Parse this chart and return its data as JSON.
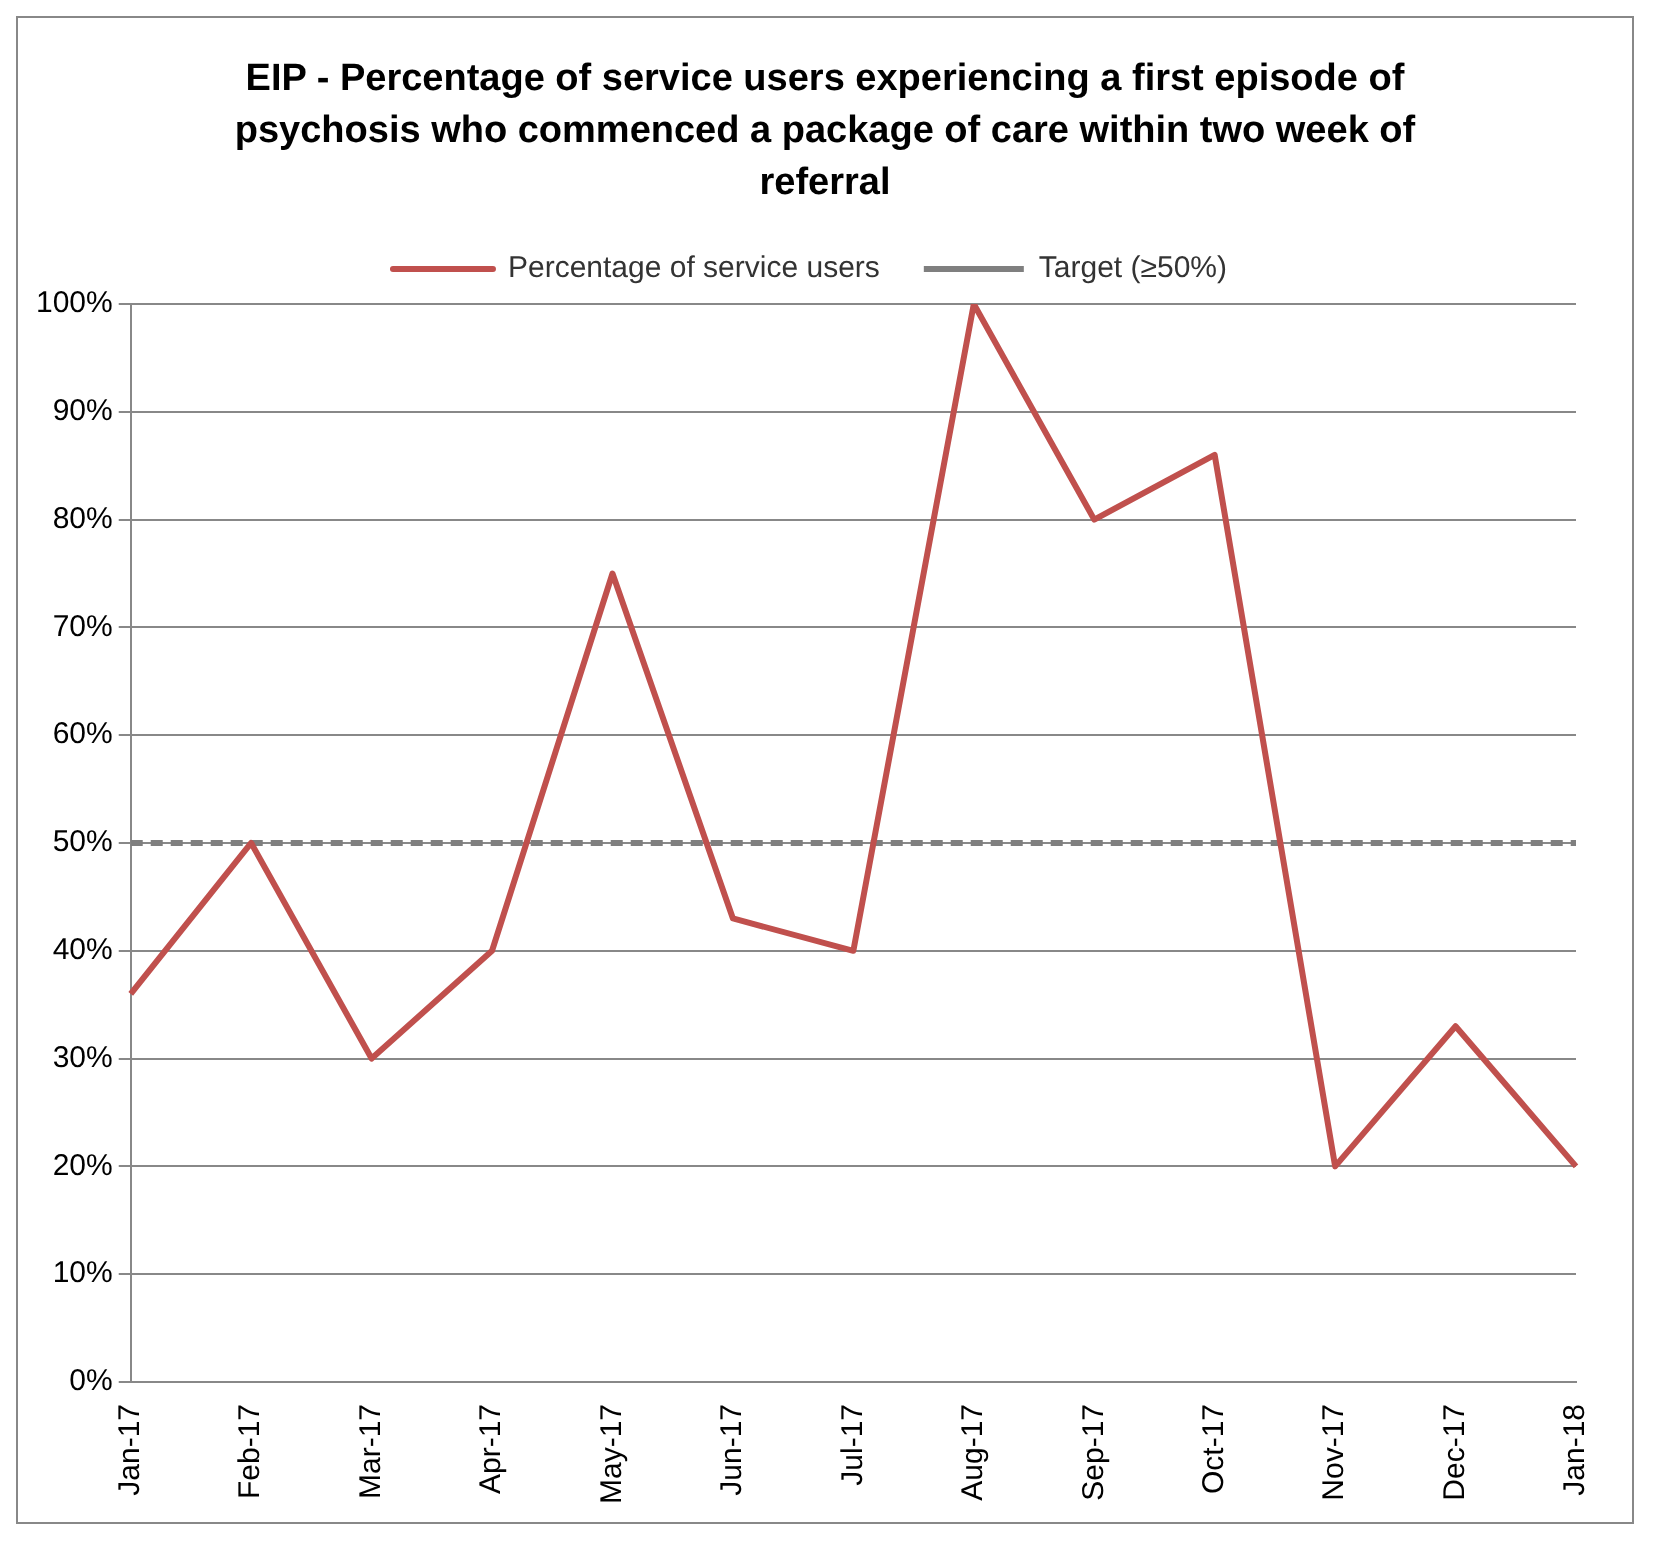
{
  "chart_data": {
    "type": "line",
    "title": "EIP - Percentage of service users experiencing a first episode of psychosis who commenced a package of care within two week of referral",
    "categories": [
      "Jan-17",
      "Feb-17",
      "Mar-17",
      "Apr-17",
      "May-17",
      "Jun-17",
      "Jul-17",
      "Aug-17",
      "Sep-17",
      "Oct-17",
      "Nov-17",
      "Dec-17",
      "Jan-18"
    ],
    "series": [
      {
        "name": "Percentage of service users",
        "color": "#c0504d",
        "values": [
          36,
          50,
          30,
          40,
          75,
          43,
          40,
          100,
          80,
          86,
          20,
          33,
          20
        ]
      },
      {
        "name": "Target (≥50%)",
        "color": "#7f7f7f",
        "line_style": "dashed",
        "values": [
          50,
          50,
          50,
          50,
          50,
          50,
          50,
          50,
          50,
          50,
          50,
          50,
          50
        ]
      }
    ],
    "ylim": [
      0,
      100
    ],
    "yticks": [
      {
        "value": 0,
        "label": "0%"
      },
      {
        "value": 10,
        "label": "10%"
      },
      {
        "value": 20,
        "label": "20%"
      },
      {
        "value": 30,
        "label": "30%"
      },
      {
        "value": 40,
        "label": "40%"
      },
      {
        "value": 50,
        "label": "50%"
      },
      {
        "value": 60,
        "label": "60%"
      },
      {
        "value": 70,
        "label": "70%"
      },
      {
        "value": 80,
        "label": "80%"
      },
      {
        "value": 90,
        "label": "90%"
      },
      {
        "value": 100,
        "label": "100%"
      }
    ],
    "grid": "y",
    "legend": "top",
    "marker": "none"
  }
}
